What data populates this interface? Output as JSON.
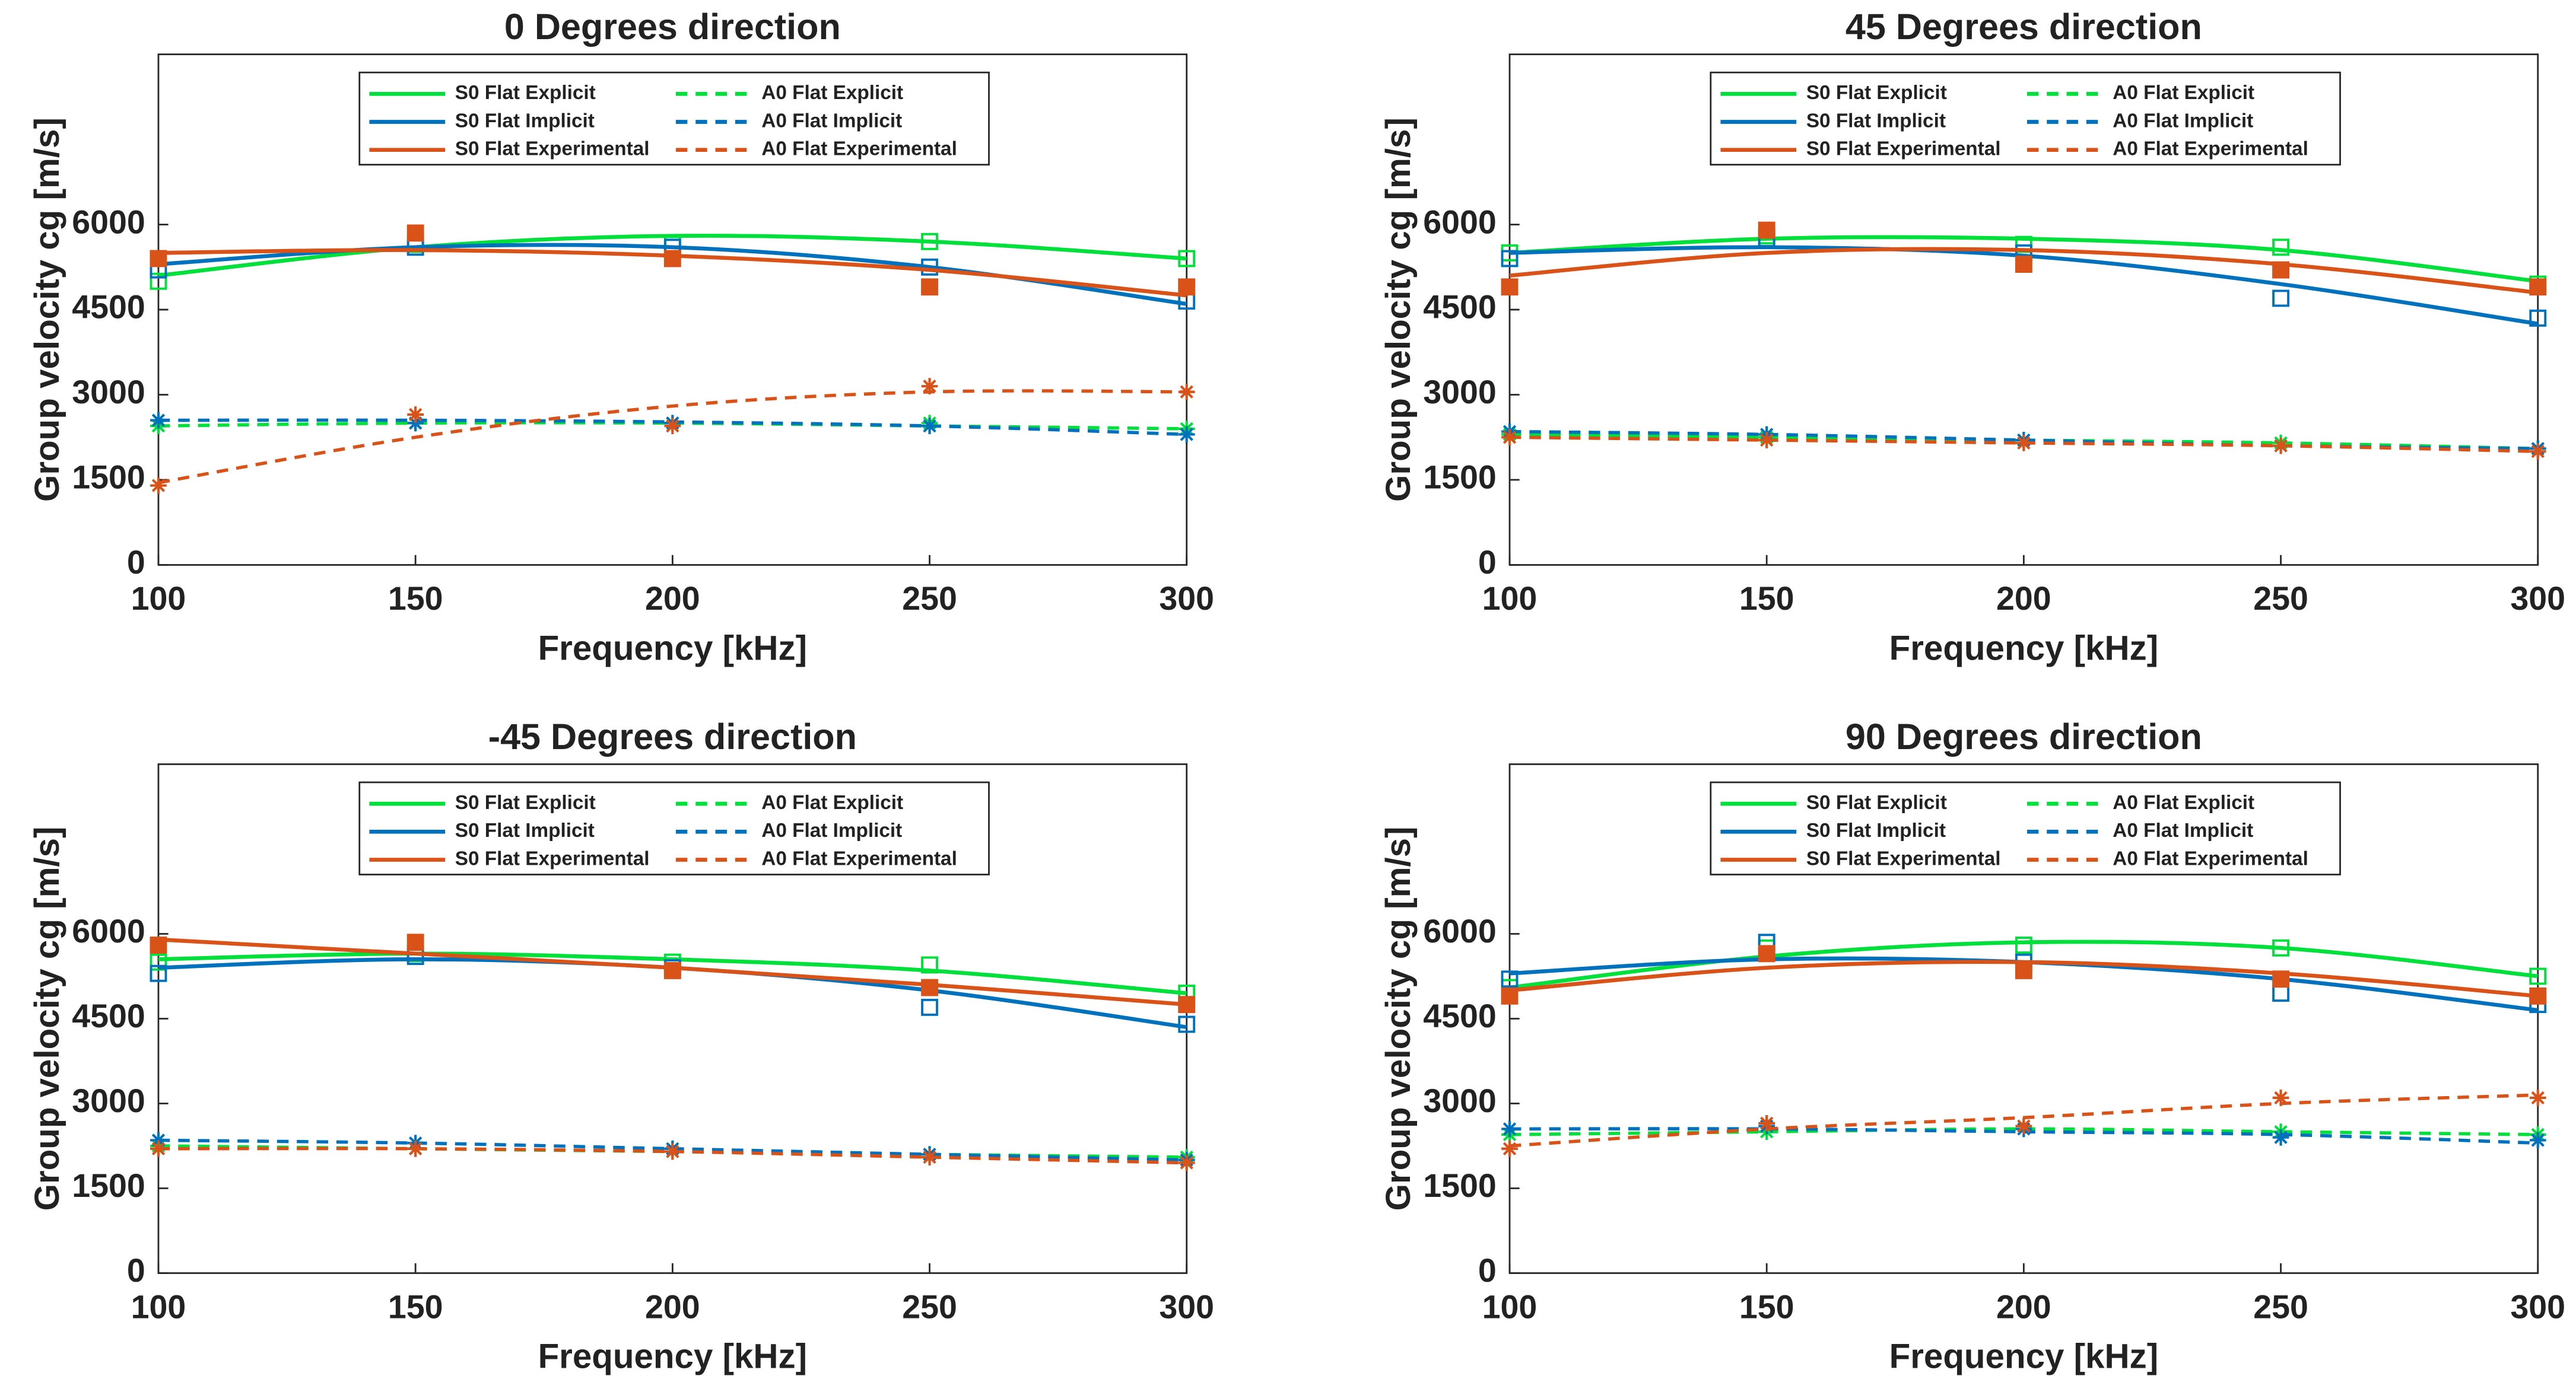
{
  "chart_data": [
    {
      "type": "line",
      "title": "0 Degrees direction",
      "x_label": "Frequency [kHz]",
      "y_label": "Group velocity cg [m/s]",
      "x": [
        100,
        150,
        200,
        250,
        300
      ],
      "xlim": [
        100,
        300
      ],
      "xticks": [
        100,
        150,
        200,
        250,
        300
      ],
      "ylim": [
        0,
        9000
      ],
      "yticks": [
        0,
        1500,
        3000,
        4500,
        6000
      ],
      "series": [
        {
          "name": "S0 Flat Explicit",
          "color": "#00e03a",
          "dashed": false,
          "marker": "square-open",
          "values": [
            5100,
            5600,
            5800,
            5700,
            5400
          ],
          "points": [
            5000,
            5650,
            5650,
            5700,
            5400
          ]
        },
        {
          "name": "A0 Flat Explicit",
          "color": "#00e03a",
          "dashed": true,
          "marker": "asterisk",
          "values": [
            2450,
            2500,
            2500,
            2450,
            2400
          ],
          "points": [
            2450,
            2500,
            2500,
            2500,
            2400
          ]
        },
        {
          "name": "S0 Flat Implicit",
          "color": "#0072bd",
          "dashed": false,
          "marker": "square-open",
          "values": [
            5300,
            5600,
            5600,
            5250,
            4600
          ],
          "points": [
            5200,
            5600,
            5600,
            5250,
            4650
          ]
        },
        {
          "name": "A0 Flat Implicit",
          "color": "#0072bd",
          "dashed": true,
          "marker": "asterisk",
          "values": [
            2550,
            2550,
            2520,
            2450,
            2300
          ],
          "points": [
            2550,
            2500,
            2500,
            2450,
            2300
          ]
        },
        {
          "name": "S0 Flat Experimental",
          "color": "#d95319",
          "dashed": false,
          "marker": "square-filled",
          "values": [
            5500,
            5550,
            5450,
            5200,
            4750
          ],
          "points": [
            5400,
            5850,
            5400,
            4900,
            4900
          ]
        },
        {
          "name": "A0 Flat Experimental",
          "color": "#d95319",
          "dashed": true,
          "marker": "asterisk",
          "values": [
            1450,
            2250,
            2800,
            3050,
            3050
          ],
          "points": [
            1400,
            2650,
            2450,
            3150,
            3050
          ]
        }
      ]
    },
    {
      "type": "line",
      "title": "45 Degrees direction",
      "x_label": "Frequency [kHz]",
      "y_label": "Group velocity cg [m/s]",
      "x": [
        100,
        150,
        200,
        250,
        300
      ],
      "xlim": [
        100,
        300
      ],
      "xticks": [
        100,
        150,
        200,
        250,
        300
      ],
      "ylim": [
        0,
        9000
      ],
      "yticks": [
        0,
        1500,
        3000,
        4500,
        6000
      ],
      "series": [
        {
          "name": "S0 Flat Explicit",
          "color": "#00e03a",
          "dashed": false,
          "marker": "square-open",
          "values": [
            5500,
            5750,
            5750,
            5550,
            5000
          ],
          "points": [
            5500,
            5800,
            5650,
            5600,
            4950
          ]
        },
        {
          "name": "A0 Flat Explicit",
          "color": "#00e03a",
          "dashed": true,
          "marker": "asterisk",
          "values": [
            2300,
            2250,
            2200,
            2150,
            2050
          ],
          "points": [
            2300,
            2250,
            2200,
            2150,
            2050
          ]
        },
        {
          "name": "S0 Flat Implicit",
          "color": "#0072bd",
          "dashed": false,
          "marker": "square-open",
          "values": [
            5500,
            5600,
            5450,
            4950,
            4250
          ],
          "points": [
            5400,
            5750,
            5500,
            4700,
            4350
          ]
        },
        {
          "name": "A0 Flat Implicit",
          "color": "#0072bd",
          "dashed": true,
          "marker": "asterisk",
          "values": [
            2350,
            2300,
            2200,
            2100,
            2050
          ],
          "points": [
            2350,
            2300,
            2200,
            2100,
            2050
          ]
        },
        {
          "name": "S0 Flat Experimental",
          "color": "#d95319",
          "dashed": false,
          "marker": "square-filled",
          "values": [
            5100,
            5500,
            5550,
            5300,
            4800
          ],
          "points": [
            4900,
            5900,
            5300,
            5200,
            4900
          ]
        },
        {
          "name": "A0 Flat Experimental",
          "color": "#d95319",
          "dashed": true,
          "marker": "asterisk",
          "values": [
            2250,
            2200,
            2150,
            2100,
            2000
          ],
          "points": [
            2250,
            2200,
            2150,
            2100,
            2000
          ]
        }
      ]
    },
    {
      "type": "line",
      "title": "-45 Degrees direction",
      "x_label": "Frequency [kHz]",
      "y_label": "Group velocity cg [m/s]",
      "x": [
        100,
        150,
        200,
        250,
        300
      ],
      "xlim": [
        100,
        300
      ],
      "xticks": [
        100,
        150,
        200,
        250,
        300
      ],
      "ylim": [
        0,
        9000
      ],
      "yticks": [
        0,
        1500,
        3000,
        4500,
        6000
      ],
      "series": [
        {
          "name": "S0 Flat Explicit",
          "color": "#00e03a",
          "dashed": false,
          "marker": "square-open",
          "values": [
            5550,
            5650,
            5550,
            5350,
            4950
          ],
          "points": [
            5500,
            5650,
            5500,
            5450,
            4950
          ]
        },
        {
          "name": "A0 Flat Explicit",
          "color": "#00e03a",
          "dashed": true,
          "marker": "asterisk",
          "values": [
            2250,
            2200,
            2150,
            2100,
            2050
          ],
          "points": [
            2250,
            2200,
            2150,
            2100,
            2050
          ]
        },
        {
          "name": "S0 Flat Implicit",
          "color": "#0072bd",
          "dashed": false,
          "marker": "square-open",
          "values": [
            5400,
            5550,
            5400,
            5000,
            4350
          ],
          "points": [
            5300,
            5600,
            5400,
            4700,
            4400
          ]
        },
        {
          "name": "A0 Flat Implicit",
          "color": "#0072bd",
          "dashed": true,
          "marker": "asterisk",
          "values": [
            2350,
            2300,
            2200,
            2100,
            2000
          ],
          "points": [
            2350,
            2300,
            2200,
            2100,
            2000
          ]
        },
        {
          "name": "S0 Flat Experimental",
          "color": "#d95319",
          "dashed": false,
          "marker": "square-filled",
          "values": [
            5900,
            5650,
            5400,
            5100,
            4750
          ],
          "points": [
            5800,
            5850,
            5350,
            5050,
            4750
          ]
        },
        {
          "name": "A0 Flat Experimental",
          "color": "#d95319",
          "dashed": true,
          "marker": "asterisk",
          "values": [
            2200,
            2200,
            2150,
            2050,
            1950
          ],
          "points": [
            2200,
            2200,
            2150,
            2050,
            1950
          ]
        }
      ]
    },
    {
      "type": "line",
      "title": "90 Degrees direction",
      "x_label": "Frequency [kHz]",
      "y_label": "Group velocity cg [m/s]",
      "x": [
        100,
        150,
        200,
        250,
        300
      ],
      "xlim": [
        100,
        300
      ],
      "xticks": [
        100,
        150,
        200,
        250,
        300
      ],
      "ylim": [
        0,
        9000
      ],
      "yticks": [
        0,
        1500,
        3000,
        4500,
        6000
      ],
      "series": [
        {
          "name": "S0 Flat Explicit",
          "color": "#00e03a",
          "dashed": false,
          "marker": "square-open",
          "values": [
            5050,
            5600,
            5850,
            5750,
            5250
          ],
          "points": [
            5050,
            5750,
            5800,
            5750,
            5250
          ]
        },
        {
          "name": "A0 Flat Explicit",
          "color": "#00e03a",
          "dashed": true,
          "marker": "asterisk",
          "values": [
            2450,
            2500,
            2550,
            2500,
            2450
          ],
          "points": [
            2450,
            2500,
            2600,
            2500,
            2450
          ]
        },
        {
          "name": "S0 Flat Implicit",
          "color": "#0072bd",
          "dashed": false,
          "marker": "square-open",
          "values": [
            5300,
            5550,
            5500,
            5200,
            4650
          ],
          "points": [
            5200,
            5850,
            5500,
            4950,
            4750
          ]
        },
        {
          "name": "A0 Flat Implicit",
          "color": "#0072bd",
          "dashed": true,
          "marker": "asterisk",
          "values": [
            2550,
            2550,
            2500,
            2450,
            2300
          ],
          "points": [
            2550,
            2600,
            2550,
            2400,
            2350
          ]
        },
        {
          "name": "S0 Flat Experimental",
          "color": "#d95319",
          "dashed": false,
          "marker": "square-filled",
          "values": [
            5000,
            5400,
            5500,
            5300,
            4900
          ],
          "points": [
            4900,
            5650,
            5350,
            5200,
            4900
          ]
        },
        {
          "name": "A0 Flat Experimental",
          "color": "#d95319",
          "dashed": true,
          "marker": "asterisk",
          "values": [
            2250,
            2550,
            2750,
            3000,
            3150
          ],
          "points": [
            2200,
            2650,
            2600,
            3100,
            3100
          ]
        }
      ]
    }
  ]
}
